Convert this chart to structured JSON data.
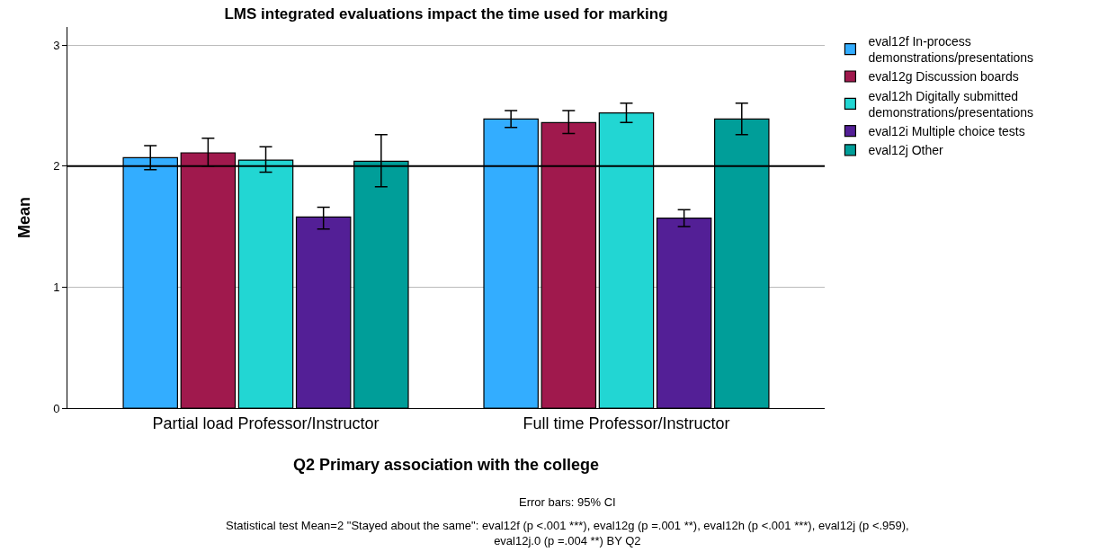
{
  "chart_data": {
    "type": "bar",
    "title": "LMS integrated evaluations impact the time used for marking",
    "xlabel": "Q2 Primary association with the college",
    "ylabel": "Mean",
    "categories": [
      "Partial load Professor/Instructor",
      "Full time Professor/Instructor"
    ],
    "series": [
      {
        "name": "eval12f In-process demonstrations/presentations",
        "color": "#33adff",
        "values": [
          2.07,
          2.39
        ],
        "errors": [
          [
            1.97,
            2.17
          ],
          [
            2.32,
            2.46
          ]
        ]
      },
      {
        "name": "eval12g Discussion boards",
        "color": "#a0194d",
        "values": [
          2.11,
          2.36
        ],
        "errors": [
          [
            2.0,
            2.23
          ],
          [
            2.27,
            2.46
          ]
        ]
      },
      {
        "name": "eval12h Digitally submitted demonstrations/presentations",
        "color": "#22d6d3",
        "values": [
          2.05,
          2.44
        ],
        "errors": [
          [
            1.95,
            2.16
          ],
          [
            2.36,
            2.52
          ]
        ]
      },
      {
        "name": "eval12i Multiple choice tests",
        "color": "#531f96",
        "values": [
          1.58,
          1.57
        ],
        "errors": [
          [
            1.48,
            1.66
          ],
          [
            1.5,
            1.64
          ]
        ]
      },
      {
        "name": "eval12j Other",
        "color": "#009e99",
        "values": [
          2.04,
          2.39
        ],
        "errors": [
          [
            1.83,
            2.26
          ],
          [
            2.26,
            2.52
          ]
        ]
      }
    ],
    "ylim": [
      0,
      3.15
    ],
    "yticks": [
      0,
      1,
      2,
      3
    ],
    "grid": "y",
    "legend": "top right",
    "ref_lines": [
      {
        "axis": "y",
        "value": 2,
        "color": "#000000"
      }
    ],
    "annotations": [
      "Error bars: 95% CI",
      "Statistical test Mean=2 \"Stayed about the same\": eval12f (p <.001 ***), eval12g (p =.001 **), eval12h (p <.001 ***), eval12j (p <.959), eval12j.0 (p =.004 **) BY Q2"
    ]
  }
}
